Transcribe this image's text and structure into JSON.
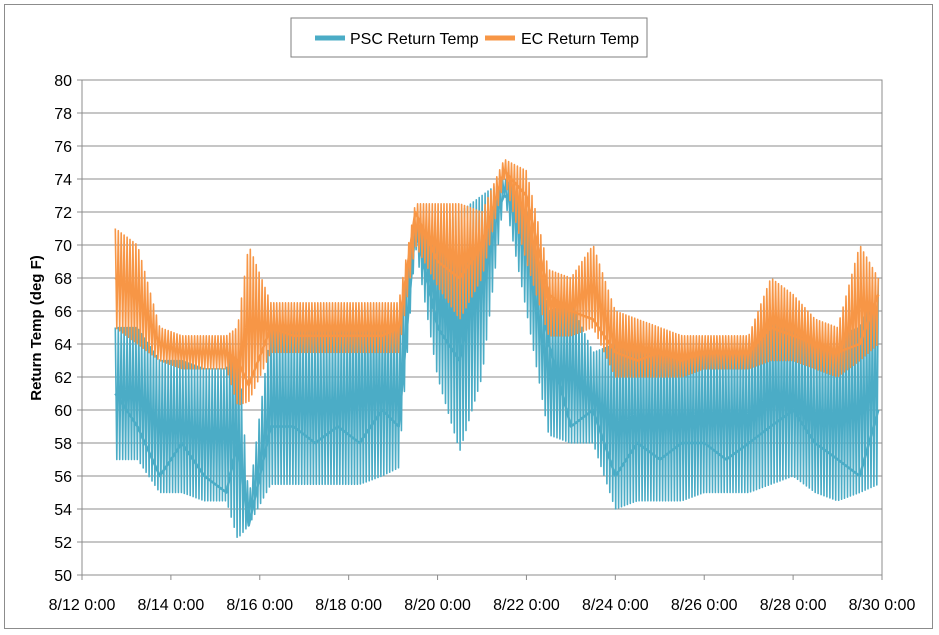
{
  "chart_data": {
    "type": "line",
    "title": "",
    "xlabel": "",
    "ylabel": "Return Temp (deg F)",
    "ylim": [
      50,
      80
    ],
    "yticks": [
      50,
      52,
      54,
      56,
      58,
      60,
      62,
      64,
      66,
      68,
      70,
      72,
      74,
      76,
      78,
      80
    ],
    "xlim": [
      "8/12 0:00",
      "8/30 0:00"
    ],
    "xticks": [
      "8/12 0:00",
      "8/14 0:00",
      "8/16 0:00",
      "8/18 0:00",
      "8/20 0:00",
      "8/22 0:00",
      "8/24 0:00",
      "8/26 0:00",
      "8/28 0:00",
      "8/30 0:00"
    ],
    "grid": "horizontal",
    "legend_position": "top",
    "x": [
      "8/12 18:00",
      "8/13 6:00",
      "8/13 18:00",
      "8/14 6:00",
      "8/14 18:00",
      "8/15 6:00",
      "8/15 12:00",
      "8/15 18:00",
      "8/16 6:00",
      "8/16 18:00",
      "8/17 6:00",
      "8/17 18:00",
      "8/18 6:00",
      "8/18 18:00",
      "8/19 3:00",
      "8/19 12:00",
      "8/20 0:00",
      "8/20 12:00",
      "8/21 0:00",
      "8/21 12:00",
      "8/22 0:00",
      "8/22 12:00",
      "8/23 0:00",
      "8/23 12:00",
      "8/24 0:00",
      "8/24 12:00",
      "8/25 0:00",
      "8/25 12:00",
      "8/26 0:00",
      "8/26 12:00",
      "8/27 0:00",
      "8/27 12:00",
      "8/28 0:00",
      "8/28 12:00",
      "8/29 0:00",
      "8/29 12:00",
      "8/29 22:00"
    ],
    "series": [
      {
        "name": "PSC Return Temp",
        "color": "#4bacc6",
        "values": [
          61,
          59,
          56,
          58,
          56,
          55,
          58,
          53,
          59,
          59,
          58,
          59,
          58,
          60,
          59,
          71,
          65,
          63,
          70,
          73,
          72,
          64,
          59,
          60,
          56,
          58,
          57,
          58,
          58,
          57,
          58,
          59,
          60,
          58,
          57,
          56,
          60
        ],
        "range_low": [
          57,
          57,
          55,
          55,
          54.5,
          54.5,
          52.2,
          53,
          55.5,
          55.5,
          55.5,
          55.5,
          55.5,
          56,
          56.5,
          70,
          62,
          57.5,
          62,
          73,
          66,
          58.5,
          58,
          58,
          54,
          54.5,
          54.5,
          54.5,
          55,
          55,
          55,
          55.5,
          56,
          55,
          54.5,
          55,
          55.5
        ],
        "range_high": [
          65,
          65,
          63,
          63,
          62.5,
          62.5,
          65,
          54.5,
          65,
          65,
          65,
          65,
          66,
          66,
          65,
          72,
          71,
          72,
          73,
          74,
          73,
          66,
          66.5,
          63.5,
          64,
          64,
          64,
          64,
          64,
          64,
          64,
          66,
          65,
          64,
          64.5,
          65,
          68
        ]
      },
      {
        "name": "EC Return Temp",
        "color": "#f79646",
        "values": [
          68,
          67,
          64,
          63.5,
          63.5,
          63.5,
          63,
          61.5,
          65,
          64.5,
          64.5,
          64.5,
          64.5,
          64.5,
          65,
          72,
          69,
          68,
          70,
          74.5,
          73,
          67,
          66,
          65.5,
          63.5,
          63,
          63.5,
          63,
          63.5,
          63.5,
          63.5,
          65,
          64.5,
          64,
          63.5,
          64,
          67
        ],
        "range_low": [
          65,
          64,
          63,
          62.5,
          62.5,
          62.5,
          60.3,
          60.5,
          63.5,
          63.5,
          63.5,
          63.5,
          63.5,
          63.5,
          63.5,
          70,
          67.5,
          65.5,
          68,
          74,
          69,
          64.5,
          64.5,
          65,
          62,
          62,
          62,
          62,
          62.5,
          62.5,
          62.5,
          63,
          63,
          62.5,
          62,
          63,
          64
        ],
        "range_high": [
          71,
          70,
          65,
          64.5,
          64.5,
          64.5,
          65,
          70,
          66.5,
          66.5,
          66.5,
          66.5,
          66.5,
          66.5,
          66.5,
          72.5,
          72.5,
          72.5,
          72,
          75.2,
          74.5,
          68.5,
          68,
          70,
          66,
          65.5,
          65,
          64.5,
          64.5,
          64.5,
          64.5,
          68,
          67,
          65.5,
          65,
          70,
          68
        ]
      }
    ]
  },
  "legend": {
    "psc_label": "PSC Return Temp",
    "ec_label": "EC Return Temp"
  }
}
